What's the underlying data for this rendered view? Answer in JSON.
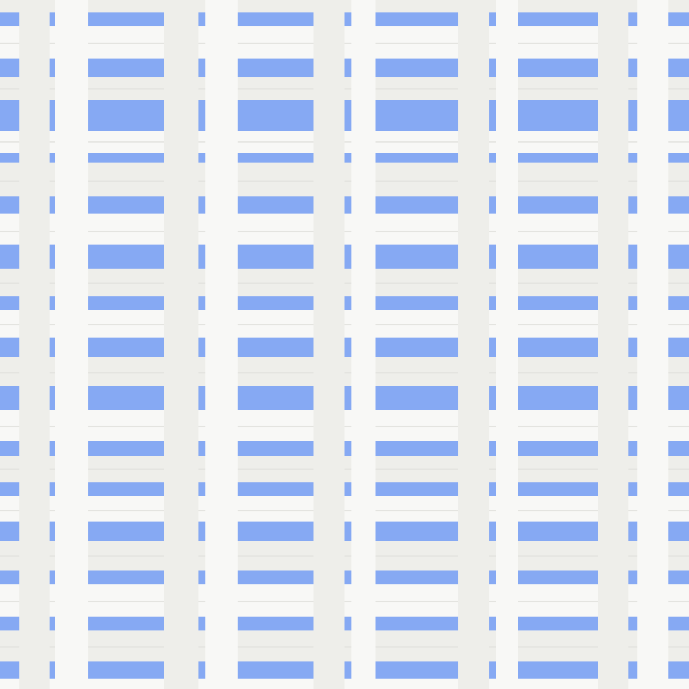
{
  "image": {
    "subject": "woven-white-strips-over-blue",
    "colors": {
      "background_blue": "#86a9f3",
      "strip_white": "#f8f8f6",
      "strip_shade": "#eeeeea"
    }
  }
}
